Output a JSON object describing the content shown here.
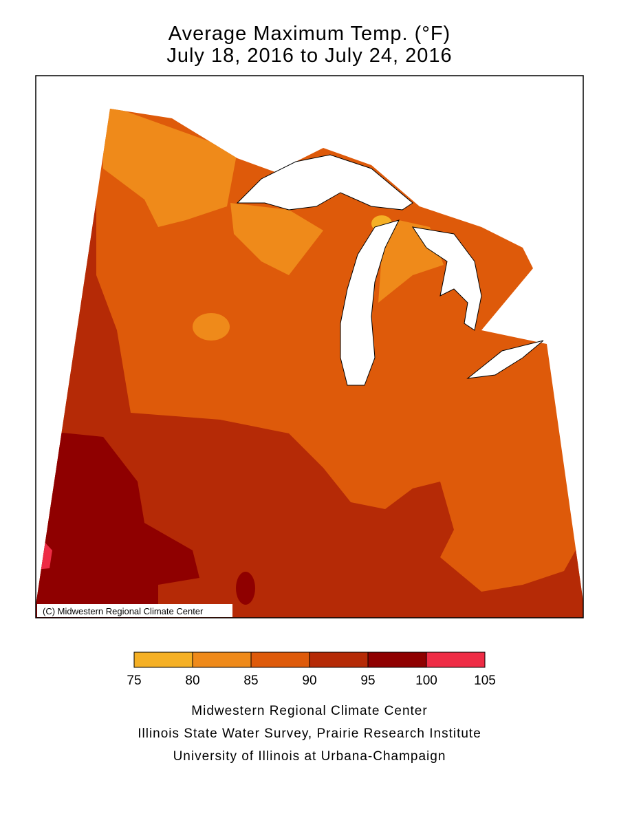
{
  "title": [
    "Average Maximum Temp. (°F)",
    "July 18, 2016 to July 24, 2016"
  ],
  "copyright": "(C) Midwestern Regional Climate Center",
  "legend": {
    "ticks": [
      75,
      80,
      85,
      90,
      95,
      100,
      105
    ],
    "colors": [
      "#f5b025",
      "#ef8a1a",
      "#de5a0a",
      "#b52a06",
      "#8f0000",
      "#ee2c45"
    ]
  },
  "credits": [
    "Midwestern Regional Climate Center",
    "Illinois State Water Survey, Prairie Research Institute",
    "University of Illinois at Urbana-Champaign"
  ]
}
